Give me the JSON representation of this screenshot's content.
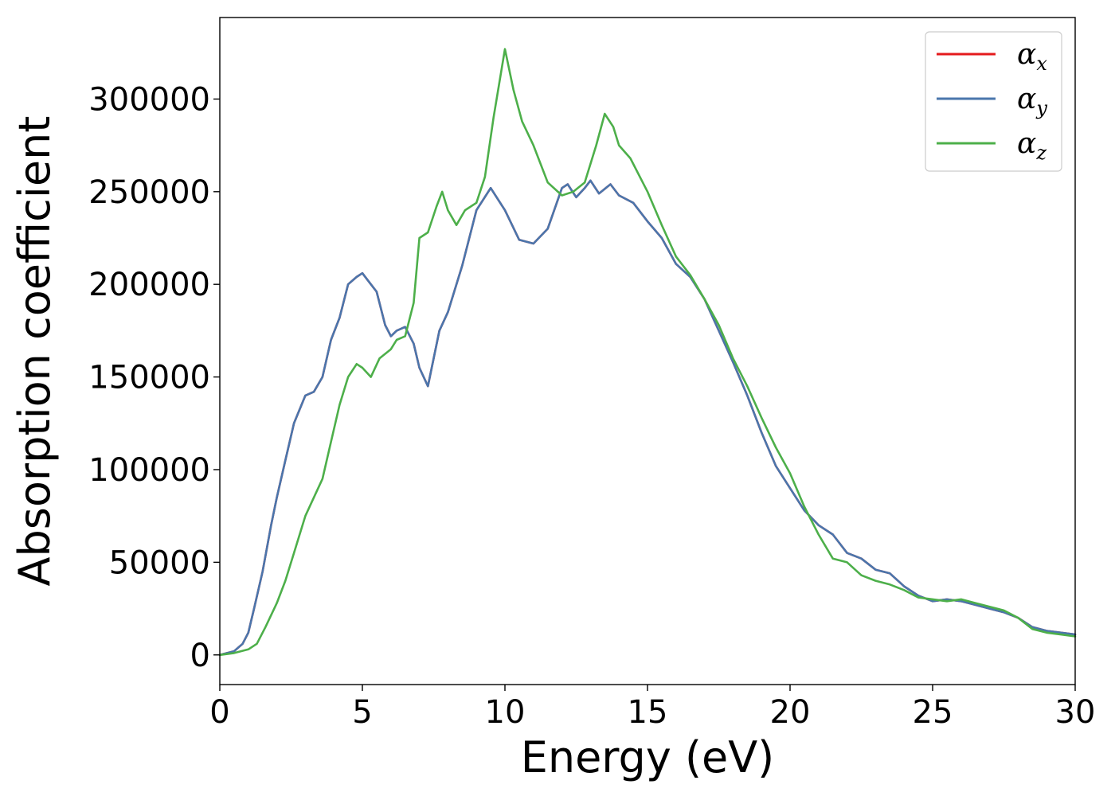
{
  "chart_data": {
    "type": "line",
    "xlabel": "Energy (eV)",
    "ylabel": "Absorption coefficient",
    "xlim": [
      0,
      30
    ],
    "ylim": [
      -16000,
      344000
    ],
    "xticks": [
      0,
      5,
      10,
      15,
      20,
      25,
      30
    ],
    "yticks": [
      0,
      50000,
      100000,
      150000,
      200000,
      250000,
      300000
    ],
    "grid": false,
    "legend_position": "top-right",
    "series": [
      {
        "name": "α_x",
        "legend_symbol": "α",
        "legend_sub": "x",
        "color": "#e41a1c",
        "x": [
          0,
          0.5,
          0.8,
          1.0,
          1.2,
          1.5,
          1.8,
          2.0,
          2.3,
          2.6,
          3.0,
          3.3,
          3.6,
          3.9,
          4.2,
          4.5,
          4.8,
          5.0,
          5.3,
          5.5,
          5.8,
          6.0,
          6.2,
          6.5,
          6.8,
          7.0,
          7.3,
          7.7,
          8.0,
          8.5,
          9.0,
          9.5,
          10.0,
          10.5,
          11.0,
          11.5,
          12.0,
          12.2,
          12.5,
          12.8,
          13.0,
          13.3,
          13.7,
          14.0,
          14.5,
          15.0,
          15.5,
          16.0,
          16.5,
          17.0,
          17.5,
          18.0,
          18.5,
          19.0,
          19.5,
          20.0,
          20.5,
          21.0,
          21.5,
          22.0,
          22.5,
          23.0,
          23.5,
          24.0,
          24.5,
          25.0,
          25.5,
          26.0,
          26.5,
          27.0,
          27.5,
          28.0,
          28.5,
          29.0,
          29.5,
          30.0
        ],
        "y": [
          0,
          2000,
          6000,
          12000,
          25000,
          45000,
          70000,
          85000,
          105000,
          125000,
          140000,
          142000,
          150000,
          170000,
          182000,
          200000,
          204000,
          206000,
          200000,
          196000,
          178000,
          172000,
          175000,
          177000,
          168000,
          155000,
          145000,
          175000,
          185000,
          210000,
          240000,
          252000,
          240000,
          224000,
          222000,
          230000,
          252000,
          254000,
          247000,
          252000,
          256000,
          249000,
          254000,
          248000,
          244000,
          234000,
          225000,
          211000,
          204000,
          192000,
          175000,
          158000,
          140000,
          120000,
          102000,
          90000,
          78000,
          70000,
          65000,
          55000,
          52000,
          46000,
          44000,
          37000,
          32000,
          29000,
          30000,
          29000,
          27000,
          25000,
          23000,
          20000,
          15000,
          13000,
          12000,
          11000
        ]
      },
      {
        "name": "α_y",
        "legend_symbol": "α",
        "legend_sub": "y",
        "color": "#4a76ac",
        "x": [
          0,
          0.5,
          0.8,
          1.0,
          1.2,
          1.5,
          1.8,
          2.0,
          2.3,
          2.6,
          3.0,
          3.3,
          3.6,
          3.9,
          4.2,
          4.5,
          4.8,
          5.0,
          5.3,
          5.5,
          5.8,
          6.0,
          6.2,
          6.5,
          6.8,
          7.0,
          7.3,
          7.7,
          8.0,
          8.5,
          9.0,
          9.5,
          10.0,
          10.5,
          11.0,
          11.5,
          12.0,
          12.2,
          12.5,
          12.8,
          13.0,
          13.3,
          13.7,
          14.0,
          14.5,
          15.0,
          15.5,
          16.0,
          16.5,
          17.0,
          17.5,
          18.0,
          18.5,
          19.0,
          19.5,
          20.0,
          20.5,
          21.0,
          21.5,
          22.0,
          22.5,
          23.0,
          23.5,
          24.0,
          24.5,
          25.0,
          25.5,
          26.0,
          26.5,
          27.0,
          27.5,
          28.0,
          28.5,
          29.0,
          29.5,
          30.0
        ],
        "y": [
          0,
          2000,
          6000,
          12000,
          25000,
          45000,
          70000,
          85000,
          105000,
          125000,
          140000,
          142000,
          150000,
          170000,
          182000,
          200000,
          204000,
          206000,
          200000,
          196000,
          178000,
          172000,
          175000,
          177000,
          168000,
          155000,
          145000,
          175000,
          185000,
          210000,
          240000,
          252000,
          240000,
          224000,
          222000,
          230000,
          252000,
          254000,
          247000,
          252000,
          256000,
          249000,
          254000,
          248000,
          244000,
          234000,
          225000,
          211000,
          204000,
          192000,
          175000,
          158000,
          140000,
          120000,
          102000,
          90000,
          78000,
          70000,
          65000,
          55000,
          52000,
          46000,
          44000,
          37000,
          32000,
          29000,
          30000,
          29000,
          27000,
          25000,
          23000,
          20000,
          15000,
          13000,
          12000,
          11000
        ]
      },
      {
        "name": "α_z",
        "legend_symbol": "α",
        "legend_sub": "z",
        "color": "#4daf4a",
        "x": [
          0,
          0.5,
          1.0,
          1.3,
          1.6,
          2.0,
          2.3,
          2.6,
          3.0,
          3.3,
          3.6,
          3.9,
          4.2,
          4.5,
          4.8,
          5.0,
          5.3,
          5.6,
          6.0,
          6.2,
          6.5,
          6.8,
          7.0,
          7.3,
          7.6,
          7.8,
          8.0,
          8.3,
          8.6,
          9.0,
          9.3,
          9.6,
          10.0,
          10.3,
          10.6,
          11.0,
          11.5,
          12.0,
          12.4,
          12.8,
          13.2,
          13.5,
          13.8,
          14.0,
          14.4,
          15.0,
          15.5,
          16.0,
          16.5,
          17.0,
          17.5,
          18.0,
          18.5,
          19.0,
          19.5,
          20.0,
          20.5,
          21.0,
          21.5,
          22.0,
          22.5,
          23.0,
          23.5,
          24.0,
          24.5,
          25.0,
          25.5,
          26.0,
          26.5,
          27.0,
          27.5,
          28.0,
          28.5,
          29.0,
          29.5,
          30.0
        ],
        "y": [
          0,
          1000,
          3000,
          6000,
          15000,
          28000,
          40000,
          55000,
          75000,
          85000,
          95000,
          115000,
          135000,
          150000,
          157000,
          155000,
          150000,
          160000,
          165000,
          170000,
          172000,
          190000,
          225000,
          228000,
          242000,
          250000,
          240000,
          232000,
          240000,
          244000,
          258000,
          290000,
          327000,
          305000,
          288000,
          275000,
          255000,
          248000,
          250000,
          255000,
          275000,
          292000,
          285000,
          275000,
          268000,
          250000,
          232000,
          215000,
          205000,
          192000,
          178000,
          160000,
          145000,
          128000,
          112000,
          98000,
          80000,
          65000,
          52000,
          50000,
          43000,
          40000,
          38000,
          35000,
          31000,
          30000,
          29000,
          30000,
          28000,
          26000,
          24000,
          20000,
          14000,
          12000,
          11000,
          10000
        ]
      }
    ]
  }
}
